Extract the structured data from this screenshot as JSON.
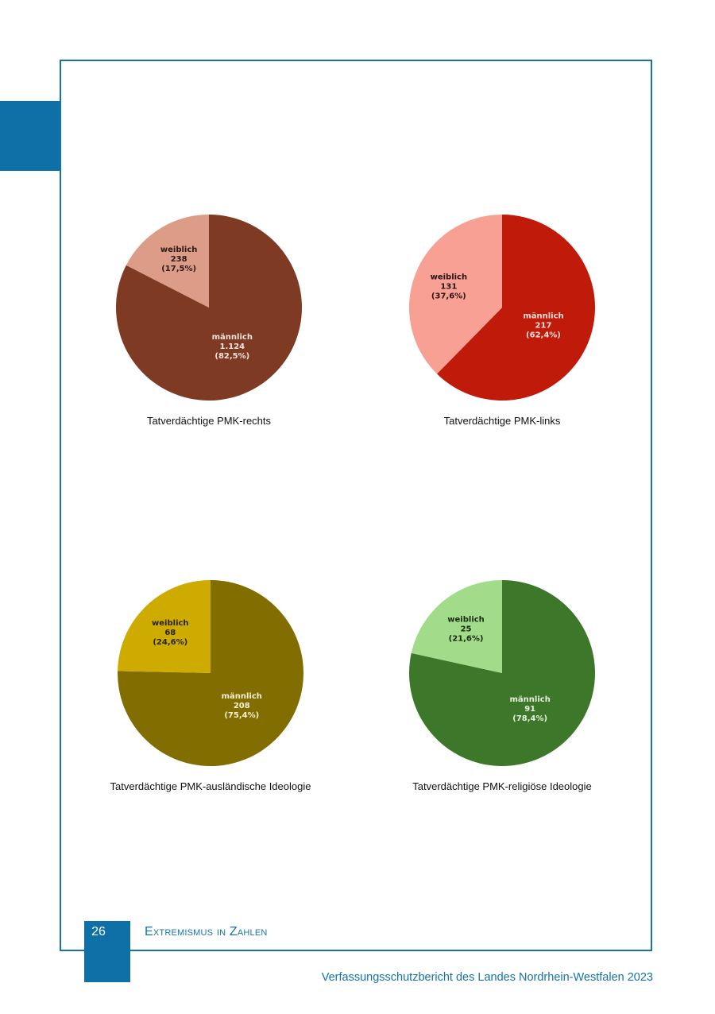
{
  "footer": {
    "page_number": "26",
    "section_title": "Extremismus in Zahlen",
    "publication": "Verfassungsschutzbericht des Landes Nordrhein-Westfalen 2023"
  },
  "colors": {
    "accent": "#0f70a8"
  },
  "chart_data": [
    {
      "type": "pie",
      "title": "Tatverdächtige PMK-rechts",
      "slices": [
        {
          "label": "männlich",
          "value": 1124,
          "count_text": "1.124",
          "percent_text": "(82,5%)",
          "color": "#7f3a24",
          "text_color": "#f3e4dc"
        },
        {
          "label": "weiblich",
          "value": 238,
          "count_text": "238",
          "percent_text": "(17,5%)",
          "color": "#dc9c87",
          "text_color": "#2a1a14"
        }
      ]
    },
    {
      "type": "pie",
      "title": "Tatverdächtige PMK-links",
      "slices": [
        {
          "label": "männlich",
          "value": 217,
          "count_text": "217",
          "percent_text": "(62,4%)",
          "color": "#c01a0a",
          "text_color": "#f8e2dc"
        },
        {
          "label": "weiblich",
          "value": 131,
          "count_text": "131",
          "percent_text": "(37,6%)",
          "color": "#f7a093",
          "text_color": "#2a1412"
        }
      ]
    },
    {
      "type": "pie",
      "title": "Tatverdächtige PMK-ausländische Ideologie",
      "slices": [
        {
          "label": "männlich",
          "value": 208,
          "count_text": "208",
          "percent_text": "(75,4%)",
          "color": "#826e00",
          "text_color": "#f4eed6"
        },
        {
          "label": "weiblich",
          "value": 68,
          "count_text": "68",
          "percent_text": "(24,6%)",
          "color": "#cdab00",
          "text_color": "#2a2300"
        }
      ]
    },
    {
      "type": "pie",
      "title": "Tatverdächtige PMK-religiöse Ideologie",
      "slices": [
        {
          "label": "männlich",
          "value": 91,
          "count_text": "91",
          "percent_text": "(78,4%)",
          "color": "#3d7729",
          "text_color": "#e6f1e1"
        },
        {
          "label": "weiblich",
          "value": 25,
          "count_text": "25",
          "percent_text": "(21,6%)",
          "color": "#a2db89",
          "text_color": "#172a10"
        }
      ]
    }
  ]
}
